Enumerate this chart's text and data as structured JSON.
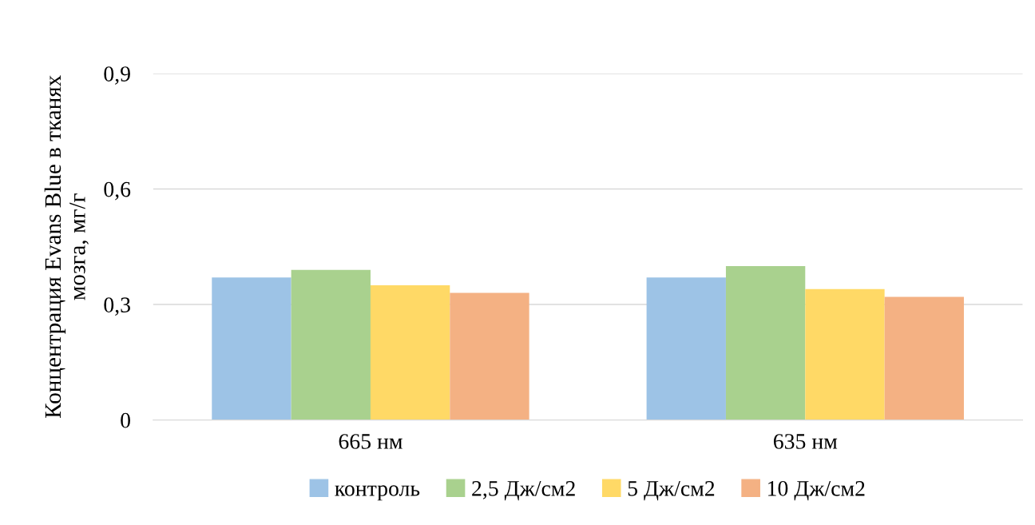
{
  "chart_data": {
    "type": "bar",
    "ylabel": "Концентрация Evans Blue в тканях\nмозга, мг/г",
    "categories": [
      "665 нм",
      "635 нм"
    ],
    "series": [
      {
        "name": "контроль",
        "color": "#9dc3e6",
        "values": [
          0.37,
          0.37
        ]
      },
      {
        "name": "2,5 Дж/см2",
        "color": "#a9d18e",
        "values": [
          0.39,
          0.4
        ]
      },
      {
        "name": "5 Дж/см2",
        "color": "#ffd966",
        "values": [
          0.35,
          0.34
        ]
      },
      {
        "name": "10 Дж/см2",
        "color": "#f4b183",
        "values": [
          0.33,
          0.32
        ]
      }
    ],
    "ylim": [
      0,
      0.9
    ],
    "yticks": [
      {
        "value": 0,
        "label": "0"
      },
      {
        "value": 0.3,
        "label": "0,3"
      },
      {
        "value": 0.6,
        "label": "0,6"
      },
      {
        "value": 0.9,
        "label": "0,9"
      }
    ],
    "grid": "y",
    "legend": "bottom"
  }
}
